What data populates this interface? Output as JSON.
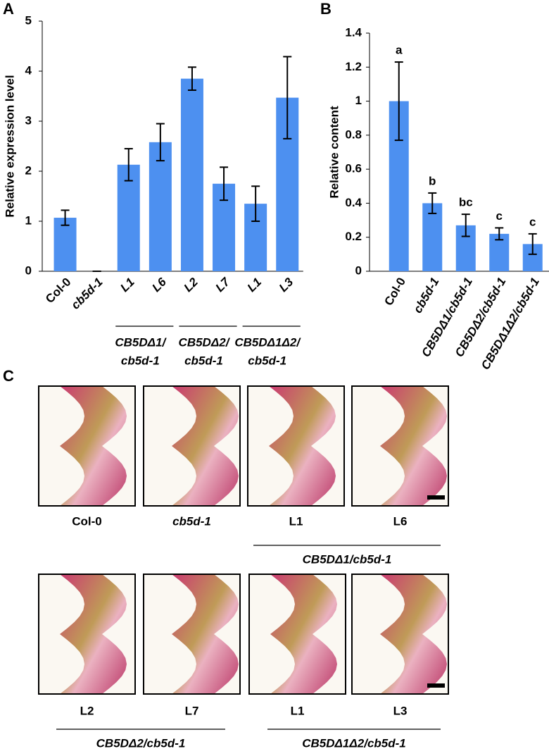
{
  "chart_data": [
    {
      "type": "bar",
      "panel": "A",
      "y_label": "Relative expression level",
      "categories": [
        "Col-0",
        "cb5d-1",
        "L1",
        "L6",
        "L2",
        "L7",
        "L1",
        "L3"
      ],
      "values": [
        1.07,
        0,
        2.13,
        2.58,
        3.85,
        1.75,
        1.35,
        3.47
      ],
      "errors": [
        0.15,
        0,
        0.32,
        0.37,
        0.23,
        0.33,
        0.35,
        0.82
      ],
      "groups": [
        {
          "lines": [
            "CB5DΔ1/",
            "cb5d-1"
          ]
        },
        {
          "lines": [
            "CB5DΔ2/",
            "cb5d-1"
          ]
        },
        {
          "lines": [
            "CB5DΔ1Δ2/",
            "cb5d-1"
          ]
        }
      ],
      "color": "#4d90f0",
      "ylim": [
        0,
        5
      ],
      "yticks": [
        0,
        1,
        2,
        3,
        4,
        5
      ]
    },
    {
      "type": "bar",
      "panel": "B",
      "y_label": "Relative content",
      "categories": [
        "Col-0",
        "cb5d-1",
        "CB5DΔ1/cb5d-1",
        "CB5DΔ2/cb5d-1",
        "CB5DΔ1Δ2/cb5d-1"
      ],
      "values": [
        1.0,
        0.4,
        0.27,
        0.22,
        0.16
      ],
      "errors": [
        0.23,
        0.06,
        0.065,
        0.035,
        0.06
      ],
      "annotations": [
        "a",
        "b",
        "bc",
        "c",
        "c"
      ],
      "color": "#4d90f0",
      "ylim": [
        0,
        1.4
      ],
      "yticks": [
        0,
        0.2,
        0.4,
        0.6,
        0.8,
        1,
        1.2,
        1.4
      ]
    }
  ],
  "micrographs": {
    "panel": "C",
    "rows": [
      {
        "captions": [
          "Col-0",
          "cb5d-1",
          "L1",
          "L6"
        ],
        "groups": [
          "CB5DΔ1/cb5d-1"
        ]
      },
      {
        "captions": [
          "L2",
          "L7",
          "L1",
          "L3"
        ],
        "groups": [
          "CB5DΔ2/cb5d-1",
          "CB5DΔ1Δ2/cb5d-1"
        ]
      }
    ]
  }
}
